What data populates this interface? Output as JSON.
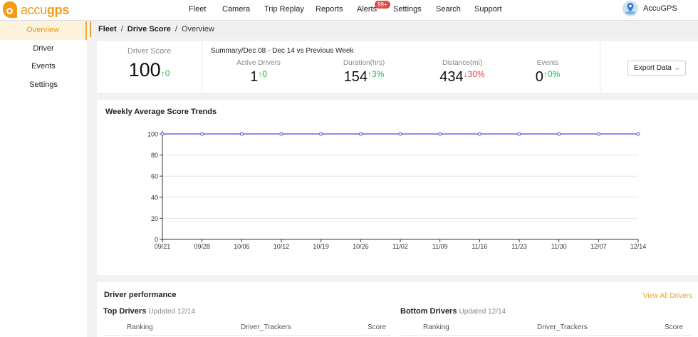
{
  "brand": {
    "name_prefix": "accu",
    "name_suffix": "gps",
    "accent": "#f39c12"
  },
  "nav": [
    {
      "label": "Fleet"
    },
    {
      "label": "Camera"
    },
    {
      "label": "Trip Replay"
    },
    {
      "label": "Reports"
    },
    {
      "label": "Alerts"
    },
    {
      "label": "Settings"
    },
    {
      "label": "Search"
    },
    {
      "label": "Support"
    }
  ],
  "alerts_badge": "99+",
  "user": {
    "name": "AccuGPS",
    "avatar_icon": "map-pin-icon"
  },
  "sidebar": {
    "items": [
      {
        "label": "Overview",
        "active": true
      },
      {
        "label": "Driver",
        "active": false
      },
      {
        "label": "Events",
        "active": false
      },
      {
        "label": "Settings",
        "active": false
      }
    ]
  },
  "breadcrumb": {
    "root": "Fleet",
    "section": "Drive Score",
    "current": "Overview"
  },
  "summary": {
    "score_title": "Driver Score",
    "score_value": "100",
    "score_delta": "↑0",
    "period": "Summary/Dec 08 - Dec 14 vs Previous Week",
    "metrics": [
      {
        "label": "Active Drivers",
        "value": "1",
        "delta": "↑0",
        "trend": "up"
      },
      {
        "label": "Duration(hrs)",
        "value": "154",
        "delta": "↑3%",
        "trend": "up"
      },
      {
        "label": "Distance(mi)",
        "value": "434",
        "delta": "↓30%",
        "trend": "down"
      },
      {
        "label": "Events",
        "value": "0",
        "delta": "↑0%",
        "trend": "up"
      }
    ],
    "export_label": "Export Data"
  },
  "chart_title": "Weekly Average Score Trends",
  "chart_data": {
    "type": "line",
    "title": "Weekly Average Score Trends",
    "categories": [
      "09/21",
      "09/28",
      "10/05",
      "10/12",
      "10/19",
      "10/26",
      "11/02",
      "11/09",
      "11/16",
      "11/23",
      "11/30",
      "12/07",
      "12/14"
    ],
    "series": [
      {
        "values": [
          100,
          100,
          100,
          100,
          100,
          100,
          100,
          100,
          100,
          100,
          100,
          100,
          100
        ],
        "color": "#4b4bd8"
      }
    ],
    "ylim": [
      0,
      100
    ],
    "yticks": [
      0,
      20,
      40,
      60,
      80,
      100
    ],
    "grid": true,
    "xlabel": "",
    "ylabel": ""
  },
  "performance": {
    "title": "Driver performance",
    "view_all": "View All Drivers",
    "top": {
      "title": "Top Drivers",
      "updated": "Updated  12/14",
      "columns": [
        "Ranking",
        "Driver_Trackers",
        "Score"
      ]
    },
    "bottom": {
      "title": "Bottom Drivers",
      "updated": "Updated  12/14",
      "columns": [
        "Ranking",
        "Driver_Trackers",
        "Score"
      ]
    }
  }
}
